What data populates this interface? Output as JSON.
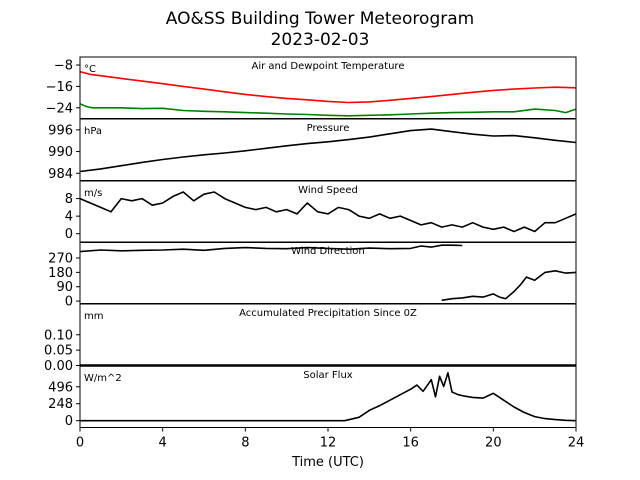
{
  "chart_data": {
    "type": "line",
    "title": "AO&SS Building Tower Meteorogram",
    "subtitle": "2023-02-03",
    "xlabel": "Time (UTC)",
    "xlim": [
      0,
      24
    ],
    "xticks": [
      "0",
      "4",
      "8",
      "12",
      "16",
      "20",
      "24"
    ],
    "panels": [
      {
        "title": "Air and Dewpoint Temperature",
        "unit": "°C",
        "ylim": [
          -28,
          -5
        ],
        "yticks": [
          -8,
          -16,
          -24
        ],
        "ytick_labels": [
          "−8",
          "−16",
          "−24"
        ],
        "series": [
          {
            "color": "#ff0000",
            "x": [
              0,
              0.5,
              1,
              2,
              3,
              4,
              5,
              6,
              7,
              8,
              9,
              10,
              11,
              12,
              13,
              14,
              15,
              16,
              17,
              18,
              19,
              20,
              21,
              22,
              23,
              24
            ],
            "values": [
              -10.5,
              -11.5,
              -12,
              -13,
              -14,
              -15,
              -16,
              -17,
              -18,
              -19,
              -19.8,
              -20.5,
              -21,
              -21.6,
              -22,
              -21.8,
              -21.2,
              -20.5,
              -19.8,
              -19,
              -18.2,
              -17.5,
              -17,
              -16.6,
              -16.3,
              -16.5
            ]
          },
          {
            "color": "#008000",
            "x": [
              0,
              0.3,
              0.6,
              1,
              2,
              3,
              4,
              5,
              6,
              7,
              8,
              9,
              10,
              11,
              12,
              13,
              14,
              15,
              16,
              17,
              18,
              19,
              20,
              21,
              22,
              23,
              23.5,
              24
            ],
            "values": [
              -22.5,
              -23.5,
              -24,
              -24,
              -24,
              -24.3,
              -24.2,
              -25,
              -25.3,
              -25.5,
              -25.8,
              -26,
              -26.3,
              -26.5,
              -26.8,
              -27,
              -26.8,
              -26.6,
              -26.3,
              -26,
              -25.8,
              -25.7,
              -25.5,
              -25.5,
              -24.5,
              -25,
              -25.8,
              -24.5
            ]
          }
        ]
      },
      {
        "title": "Pressure",
        "unit": "hPa",
        "ylim": [
          982,
          999
        ],
        "yticks": [
          996,
          990,
          984
        ],
        "ytick_labels": [
          "996",
          "990",
          "984"
        ],
        "series": [
          {
            "color": "#000000",
            "x": [
              0,
              1,
              2,
              3,
              4,
              5,
              6,
              7,
              8,
              9,
              10,
              11,
              12,
              13,
              14,
              15,
              16,
              17,
              18,
              19,
              20,
              21,
              22,
              23,
              24
            ],
            "values": [
              984.5,
              985.2,
              986.1,
              987,
              987.8,
              988.5,
              989.1,
              989.6,
              990.2,
              990.9,
              991.6,
              992.2,
              992.7,
              993.3,
              994,
              994.9,
              995.8,
              996.2,
              995.5,
              994.8,
              994.3,
              994.4,
              993.8,
              993.1,
              992.5
            ]
          }
        ]
      },
      {
        "title": "Wind Speed",
        "unit": "m/s",
        "ylim": [
          -2,
          12
        ],
        "yticks": [
          8,
          4,
          0
        ],
        "ytick_labels": [
          "8",
          "4",
          "0"
        ],
        "series": [
          {
            "color": "#000000",
            "x": [
              0,
              0.5,
              1,
              1.5,
              2,
              2.5,
              3,
              3.5,
              4,
              4.5,
              5,
              5.5,
              6,
              6.5,
              7,
              7.5,
              8,
              8.5,
              9,
              9.5,
              10,
              10.5,
              11,
              11.5,
              12,
              12.5,
              13,
              13.5,
              14,
              14.5,
              15,
              15.5,
              16,
              16.5,
              17,
              17.5,
              18,
              18.5,
              19,
              19.5,
              20,
              20.5,
              21,
              21.5,
              22,
              22.5,
              23,
              23.5,
              24
            ],
            "values": [
              8,
              7,
              6,
              5,
              8,
              7.5,
              8,
              6.5,
              7,
              8.5,
              9.5,
              7.5,
              9,
              9.5,
              8,
              7,
              6,
              5.5,
              6,
              5,
              5.5,
              4.5,
              7,
              5,
              4.5,
              6,
              5.5,
              4,
              3.5,
              4.5,
              3.5,
              4,
              3,
              2,
              2.5,
              1.5,
              2,
              1.5,
              2.5,
              1.5,
              1,
              1.5,
              0.5,
              1.5,
              0.5,
              2.5,
              2.5,
              3.5,
              4.5
            ]
          }
        ]
      },
      {
        "title": "Wind Direction",
        "unit": "",
        "ylim": [
          -15,
          370
        ],
        "yticks": [
          270,
          180,
          90,
          0
        ],
        "ytick_labels": [
          "270",
          "180",
          "90",
          "0"
        ],
        "series": [
          {
            "color": "#000000",
            "x": [
              0,
              1,
              2,
              3,
              4,
              5,
              6,
              7,
              8,
              9,
              10,
              11,
              12,
              13,
              14,
              15,
              16,
              16.5,
              17,
              17.5,
              18,
              18.5
            ],
            "values": [
              310,
              320,
              315,
              318,
              320,
              325,
              318,
              330,
              335,
              330,
              328,
              335,
              330,
              325,
              332,
              328,
              330,
              345,
              338,
              350,
              350,
              348
            ]
          },
          {
            "color": "#000000",
            "x": [
              17.5,
              18,
              18.5,
              19,
              19.5,
              20,
              20.3,
              20.6,
              21,
              21.3,
              21.6,
              22,
              22.5,
              23,
              23.5,
              24
            ],
            "values": [
              5,
              15,
              20,
              30,
              25,
              45,
              25,
              15,
              60,
              100,
              150,
              130,
              180,
              190,
              175,
              180
            ]
          }
        ]
      },
      {
        "title": "Accumulated Precipitation Since 0Z",
        "unit": "mm",
        "ylim": [
          0,
          0.2
        ],
        "yticks": [
          0.1,
          0.05,
          0.0
        ],
        "ytick_labels": [
          "0.10",
          "0.05",
          "0.00"
        ],
        "series": [
          {
            "color": "#000000",
            "x": [
              0,
              24
            ],
            "values": [
              0,
              0
            ]
          }
        ]
      },
      {
        "title": "Solar Flux",
        "unit": "W/m^2",
        "ylim": [
          -100,
          800
        ],
        "yticks": [
          496,
          248,
          0
        ],
        "ytick_labels": [
          "496",
          "248",
          "0"
        ],
        "series": [
          {
            "color": "#000000",
            "x": [
              0,
              12.8,
              13.5,
              14,
              14.5,
              15,
              15.5,
              16,
              16.3,
              16.6,
              17,
              17.2,
              17.4,
              17.6,
              17.8,
              18,
              18.3,
              18.6,
              19,
              19.5,
              20,
              20.5,
              21,
              21.5,
              22,
              22.5,
              23,
              23.5,
              24
            ],
            "values": [
              0,
              0,
              50,
              150,
              220,
              300,
              380,
              460,
              520,
              430,
              600,
              350,
              650,
              500,
              700,
              420,
              380,
              360,
              340,
              330,
              400,
              300,
              200,
              120,
              60,
              30,
              15,
              5,
              0
            ]
          }
        ]
      }
    ]
  }
}
